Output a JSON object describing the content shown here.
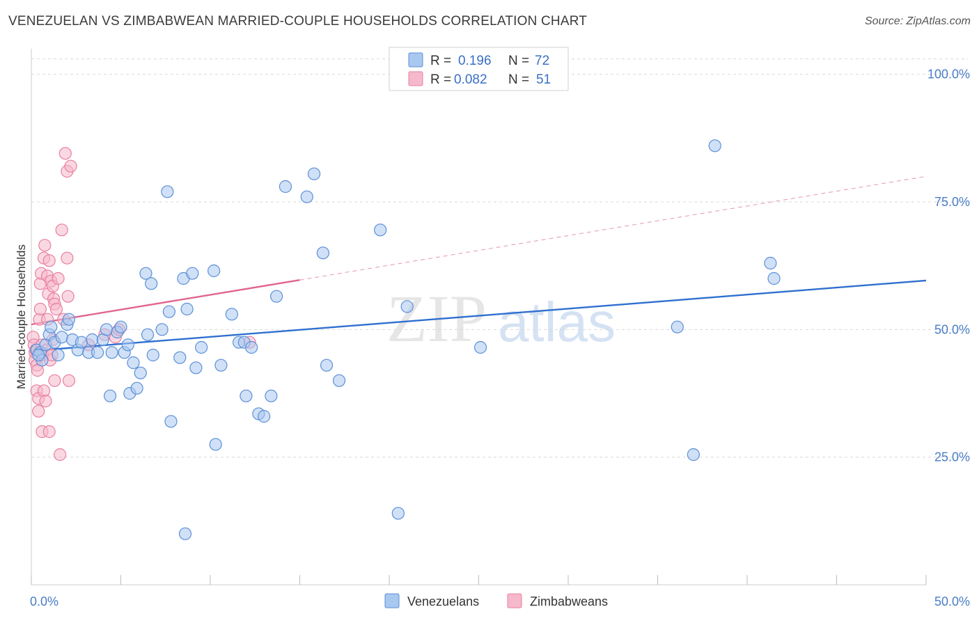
{
  "header": {
    "title": "VENEZUELAN VS ZIMBABWEAN MARRIED-COUPLE HOUSEHOLDS CORRELATION CHART",
    "source": "Source: ZipAtlas.com"
  },
  "watermark": {
    "zip": "ZIP",
    "atlas": "atlas"
  },
  "colors": {
    "venezuelan_fill": "#a9c8f0",
    "venezuelan_stroke": "#5b8fd6",
    "venezuelan_line": "#2f6fd0",
    "zimbabwean_fill": "#f6b8cb",
    "zimbabwean_stroke": "#e87fa0",
    "zimbabwean_line": "#e0668e",
    "tick": "#4a7cc7",
    "grid": "#d9d9d9"
  },
  "legend": {
    "rows": [
      {
        "r_label": "R =",
        "r_value": "0.196",
        "n_label": "N =",
        "n_value": "72"
      },
      {
        "r_label": "R =",
        "r_value": "0.082",
        "n_label": "N =",
        "n_value": "51"
      }
    ]
  },
  "bottom_legend": [
    "Venezuelans",
    "Zimbabweans"
  ],
  "chart_data": {
    "type": "scatter",
    "title": "VENEZUELAN VS ZIMBABWEAN MARRIED-COUPLE HOUSEHOLDS CORRELATION CHART",
    "xlabel": "",
    "ylabel": "Married-couple Households",
    "xlim": [
      0,
      50
    ],
    "ylim": [
      0,
      105
    ],
    "x_tick_labels": [
      "0.0%",
      "50.0%"
    ],
    "y_ticks": [
      25,
      50,
      75,
      100
    ],
    "y_tick_labels": [
      "25.0%",
      "50.0%",
      "75.0%",
      "100.0%"
    ],
    "grid": true,
    "legend_position": "top-center",
    "series": [
      {
        "name": "Venezuelans",
        "r": 0.196,
        "n": 72,
        "trend": {
          "x0": 0,
          "y0": 45.8,
          "x1": 50,
          "y1": 59.6,
          "solid_until": 50
        },
        "points": [
          [
            0.3,
            46.0
          ],
          [
            0.5,
            45.5
          ],
          [
            0.6,
            44.0
          ],
          [
            0.8,
            47.0
          ],
          [
            1.0,
            49.0
          ],
          [
            1.1,
            50.5
          ],
          [
            1.3,
            47.5
          ],
          [
            1.5,
            45.0
          ],
          [
            1.7,
            48.5
          ],
          [
            2.0,
            51.0
          ],
          [
            2.1,
            52.0
          ],
          [
            2.3,
            48.0
          ],
          [
            2.6,
            46.0
          ],
          [
            2.8,
            47.5
          ],
          [
            3.2,
            45.5
          ],
          [
            3.4,
            48.0
          ],
          [
            3.7,
            45.5
          ],
          [
            4.0,
            48.0
          ],
          [
            4.2,
            50.0
          ],
          [
            4.4,
            37.0
          ],
          [
            4.5,
            45.5
          ],
          [
            4.8,
            49.5
          ],
          [
            5.0,
            50.5
          ],
          [
            5.2,
            45.5
          ],
          [
            5.4,
            47.0
          ],
          [
            5.5,
            37.5
          ],
          [
            5.7,
            43.5
          ],
          [
            5.9,
            38.5
          ],
          [
            6.1,
            41.5
          ],
          [
            6.4,
            61.0
          ],
          [
            6.5,
            49.0
          ],
          [
            6.7,
            59.0
          ],
          [
            6.8,
            45.0
          ],
          [
            7.3,
            50.0
          ],
          [
            7.6,
            77.0
          ],
          [
            7.7,
            53.5
          ],
          [
            7.8,
            32.0
          ],
          [
            8.3,
            44.5
          ],
          [
            8.5,
            60.0
          ],
          [
            8.6,
            10.0
          ],
          [
            8.7,
            54.0
          ],
          [
            9.0,
            61.0
          ],
          [
            9.2,
            42.5
          ],
          [
            9.5,
            46.5
          ],
          [
            10.2,
            61.5
          ],
          [
            10.3,
            27.5
          ],
          [
            10.6,
            43.0
          ],
          [
            11.2,
            53.0
          ],
          [
            11.6,
            47.5
          ],
          [
            11.9,
            47.5
          ],
          [
            12.0,
            37.0
          ],
          [
            12.3,
            46.5
          ],
          [
            12.7,
            33.5
          ],
          [
            13.0,
            33.0
          ],
          [
            13.4,
            37.0
          ],
          [
            13.7,
            56.5
          ],
          [
            14.2,
            78.0
          ],
          [
            15.4,
            76.0
          ],
          [
            15.8,
            80.5
          ],
          [
            16.3,
            65.0
          ],
          [
            16.5,
            43.0
          ],
          [
            17.2,
            40.0
          ],
          [
            19.5,
            69.5
          ],
          [
            20.5,
            14.0
          ],
          [
            21.0,
            54.5
          ],
          [
            25.1,
            46.5
          ],
          [
            36.1,
            50.5
          ],
          [
            37.0,
            25.5
          ],
          [
            38.2,
            86.0
          ],
          [
            41.3,
            63.0
          ],
          [
            41.5,
            60.0
          ],
          [
            0.4,
            45.0
          ]
        ]
      },
      {
        "name": "Zimbabweans",
        "r": 0.082,
        "n": 51,
        "trend": {
          "x0": 0,
          "y0": 51.0,
          "x1": 50,
          "y1": 80.0,
          "solid_until": 15
        },
        "points": [
          [
            0.1,
            48.5
          ],
          [
            0.15,
            47.0
          ],
          [
            0.2,
            45.5
          ],
          [
            0.2,
            44.0
          ],
          [
            0.25,
            46.0
          ],
          [
            0.3,
            43.0
          ],
          [
            0.3,
            38.0
          ],
          [
            0.35,
            42.0
          ],
          [
            0.4,
            36.5
          ],
          [
            0.4,
            34.0
          ],
          [
            0.45,
            52.0
          ],
          [
            0.5,
            54.0
          ],
          [
            0.5,
            59.0
          ],
          [
            0.55,
            61.0
          ],
          [
            0.6,
            30.0
          ],
          [
            0.6,
            47.0
          ],
          [
            0.65,
            45.0
          ],
          [
            0.7,
            38.0
          ],
          [
            0.7,
            64.0
          ],
          [
            0.75,
            66.5
          ],
          [
            0.8,
            36.0
          ],
          [
            0.85,
            46.0
          ],
          [
            0.9,
            52.0
          ],
          [
            0.9,
            60.5
          ],
          [
            0.95,
            57.0
          ],
          [
            1.0,
            63.5
          ],
          [
            1.0,
            30.0
          ],
          [
            1.05,
            44.0
          ],
          [
            1.1,
            59.5
          ],
          [
            1.15,
            45.0
          ],
          [
            1.2,
            48.0
          ],
          [
            1.2,
            58.5
          ],
          [
            1.25,
            56.0
          ],
          [
            1.3,
            40.0
          ],
          [
            1.3,
            55.0
          ],
          [
            1.4,
            54.0
          ],
          [
            1.5,
            60.0
          ],
          [
            1.6,
            25.5
          ],
          [
            1.7,
            69.5
          ],
          [
            1.8,
            52.0
          ],
          [
            1.9,
            84.5
          ],
          [
            2.0,
            81.0
          ],
          [
            2.0,
            64.0
          ],
          [
            2.05,
            56.5
          ],
          [
            2.1,
            40.0
          ],
          [
            2.2,
            82.0
          ],
          [
            3.2,
            47.0
          ],
          [
            4.1,
            49.0
          ],
          [
            4.7,
            48.5
          ],
          [
            4.9,
            50.0
          ],
          [
            12.2,
            47.5
          ]
        ]
      }
    ]
  }
}
